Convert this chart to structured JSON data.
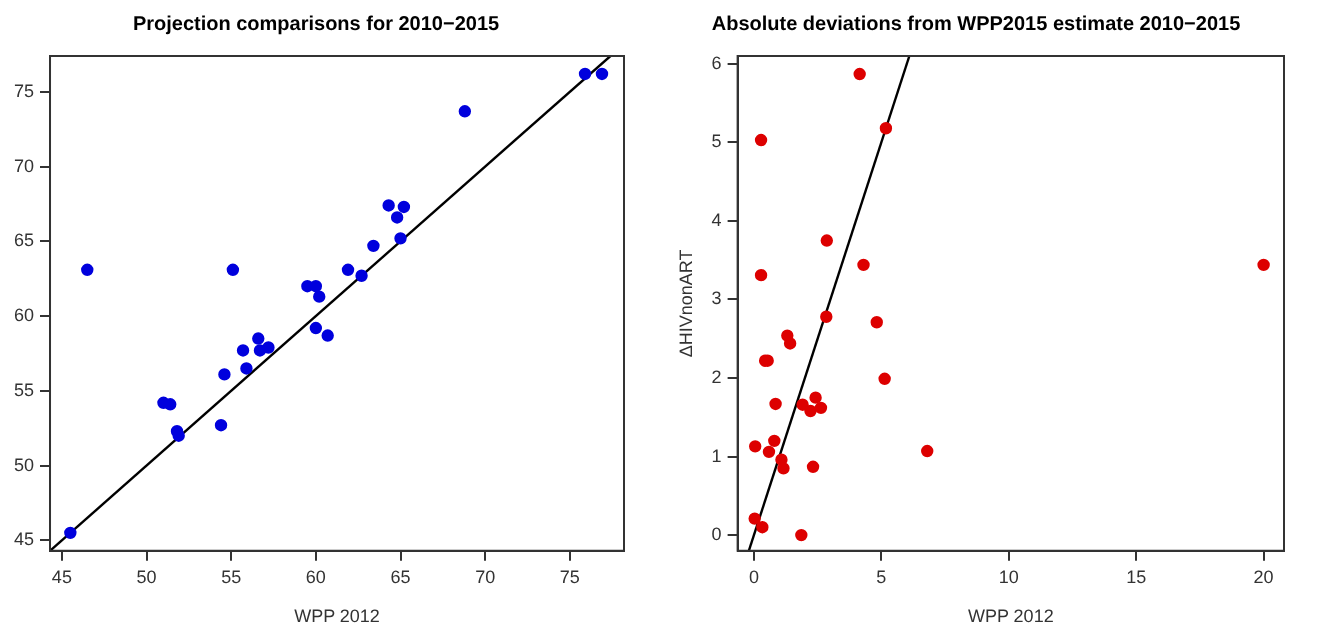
{
  "chart_data": [
    {
      "type": "scatter",
      "title": "Projection comparisons for 2010−2015",
      "xlabel": "WPP 2012",
      "xlim": [
        44.3,
        78.2
      ],
      "ylim": [
        44.3,
        77.4
      ],
      "xticks": [
        45,
        50,
        55,
        60,
        65,
        70,
        75
      ],
      "yticks": [
        45,
        50,
        55,
        60,
        65,
        70,
        75
      ],
      "grid": false,
      "marker": "circle",
      "series": [
        {
          "color": "#0000dd",
          "x": [
            45.5,
            46.5,
            51.0,
            51.4,
            51.8,
            51.9,
            54.4,
            54.6,
            55.1,
            55.7,
            55.9,
            56.6,
            56.7,
            57.2,
            59.5,
            60.0,
            60.2,
            60.0,
            60.7,
            61.9,
            62.7,
            63.4,
            64.3,
            64.8,
            65.2,
            65.0,
            68.8,
            75.9,
            76.9
          ],
          "values": [
            45.5,
            63.1,
            54.2,
            54.1,
            52.3,
            52.0,
            52.7,
            56.1,
            63.1,
            57.7,
            56.5,
            58.5,
            57.7,
            57.9,
            62.0,
            62.0,
            61.3,
            59.2,
            58.7,
            63.1,
            62.7,
            64.7,
            67.4,
            66.6,
            67.3,
            65.2,
            73.7,
            76.2,
            76.2
          ]
        },
        {
          "type": "line",
          "color": "#000000",
          "marker": "none",
          "x": [
            44.3,
            77.4
          ],
          "values": [
            44.3,
            77.4
          ]
        }
      ]
    },
    {
      "type": "scatter",
      "title": "Absolute deviations from WPP2015 estimate 2010−2015",
      "xlabel": "WPP 2012",
      "ylabel": "ΔHIVnonART",
      "xlim": [
        -0.64,
        20.8
      ],
      "ylim": [
        -0.2,
        6.1
      ],
      "xticks": [
        0,
        5,
        10,
        15,
        20
      ],
      "yticks": [
        0,
        1,
        2,
        3,
        4,
        5,
        6
      ],
      "grid": false,
      "marker": "circle",
      "series": [
        {
          "color": "#dd0000",
          "x": [
            4.15,
            0.28,
            5.18,
            2.86,
            4.3,
            20.0,
            0.28,
            2.84,
            4.82,
            1.31,
            1.42,
            0.44,
            0.54,
            5.13,
            0.85,
            2.42,
            1.91,
            2.63,
            2.22,
            0.05,
            0.8,
            0.59,
            1.08,
            1.16,
            2.32,
            6.8,
            0.03,
            0.33,
            1.86
          ],
          "values": [
            5.87,
            5.03,
            5.18,
            3.75,
            3.44,
            3.44,
            3.31,
            2.78,
            2.71,
            2.54,
            2.44,
            2.22,
            2.22,
            1.99,
            1.67,
            1.75,
            1.66,
            1.62,
            1.58,
            1.13,
            1.2,
            1.06,
            0.96,
            0.85,
            0.87,
            1.07,
            0.21,
            0.1,
            0.0
          ]
        },
        {
          "type": "line",
          "color": "#000000",
          "marker": "none",
          "x": [
            -0.2,
            6.1
          ],
          "values": [
            -0.2,
            6.1
          ]
        }
      ]
    }
  ]
}
